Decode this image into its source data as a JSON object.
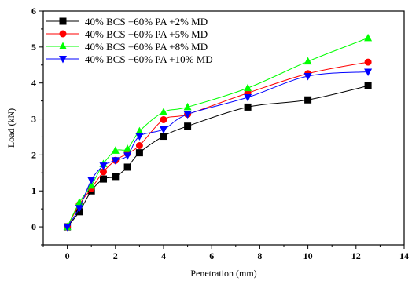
{
  "chart_data": {
    "type": "line",
    "xlabel": "Penetration (mm)",
    "ylabel": "Load (kN)",
    "xlim": [
      -1,
      14
    ],
    "ylim": [
      -0.5,
      6
    ],
    "xticks": [
      0,
      2,
      4,
      6,
      8,
      10,
      12,
      14
    ],
    "yticks": [
      0,
      1,
      2,
      3,
      4,
      5,
      6
    ],
    "grid": false,
    "legend_position": "top-left",
    "series": [
      {
        "name": "40% BCS +60% PA +2% MD",
        "color": "#000000",
        "marker": "square",
        "x": [
          0,
          0.5,
          1,
          1.5,
          2,
          2.5,
          3,
          4,
          5,
          7.5,
          10,
          12.5
        ],
        "y": [
          0,
          0.42,
          1.0,
          1.33,
          1.4,
          1.66,
          2.06,
          2.52,
          2.8,
          3.33,
          3.53,
          3.92
        ]
      },
      {
        "name": "40% BCS +60% PA +5% MD",
        "color": "#ff0000",
        "marker": "circle",
        "x": [
          0,
          0.5,
          1,
          1.5,
          2,
          2.5,
          3,
          4,
          5,
          7.5,
          10,
          12.5
        ],
        "y": [
          0,
          0.62,
          1.07,
          1.53,
          1.85,
          2.04,
          2.26,
          2.98,
          3.13,
          3.72,
          4.26,
          4.58
        ]
      },
      {
        "name": "40% BCS +60% PA +8% MD",
        "color": "#00ff00",
        "marker": "triangle-up",
        "x": [
          0,
          0.5,
          1,
          1.5,
          2,
          2.5,
          3,
          4,
          5,
          7.5,
          10,
          12.5
        ],
        "y": [
          0,
          0.68,
          1.15,
          1.75,
          2.12,
          2.17,
          2.66,
          3.19,
          3.33,
          3.86,
          4.6,
          5.25
        ]
      },
      {
        "name": "40% BCS +60% PA +10% MD",
        "color": "#0000ff",
        "marker": "triangle-down",
        "x": [
          0,
          0.5,
          1,
          1.5,
          2,
          2.5,
          3,
          4,
          5,
          7.5,
          10,
          12.5
        ],
        "y": [
          0,
          0.52,
          1.3,
          1.7,
          1.85,
          1.98,
          2.52,
          2.71,
          3.13,
          3.6,
          4.19,
          4.31
        ]
      }
    ]
  }
}
